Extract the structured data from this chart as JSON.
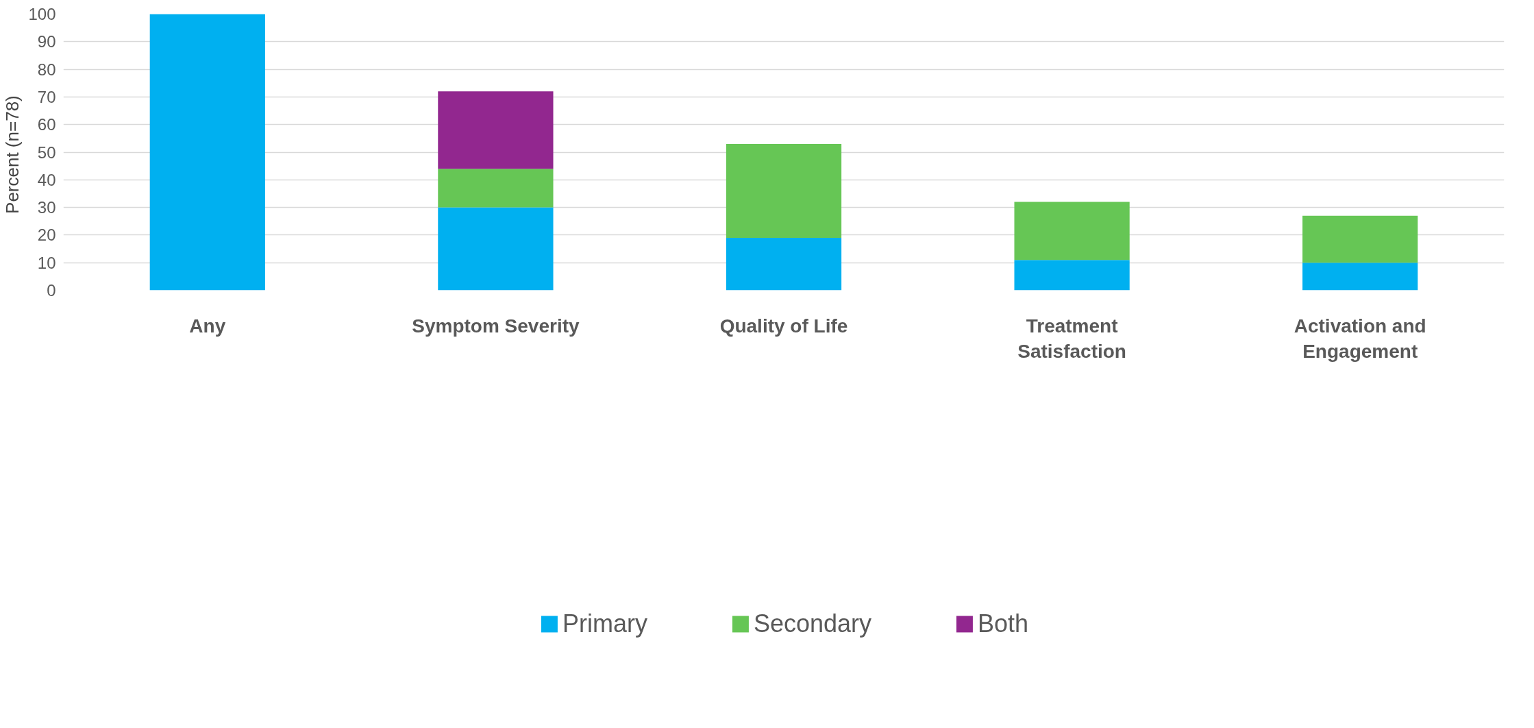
{
  "chart_data": {
    "type": "bar",
    "stacked": true,
    "ylabel": "Percent  (n=78)",
    "categories": [
      "Any",
      "Symptom Severity",
      "Quality of Life",
      "Treatment Satisfaction",
      "Activation and Engagement"
    ],
    "series": [
      {
        "name": "Primary",
        "color": "#00b0f0",
        "values": [
          100,
          30,
          19,
          11,
          10
        ]
      },
      {
        "name": "Secondary",
        "color": "#66c655",
        "values": [
          0,
          14,
          34,
          21,
          17
        ]
      },
      {
        "name": "Both",
        "color": "#92278f",
        "values": [
          0,
          28,
          0,
          0,
          0
        ]
      }
    ],
    "ylim": [
      0,
      100
    ],
    "yticks": [
      0,
      10,
      20,
      30,
      40,
      50,
      60,
      70,
      80,
      90,
      100
    ],
    "grid": "y",
    "legend": "bottom"
  }
}
